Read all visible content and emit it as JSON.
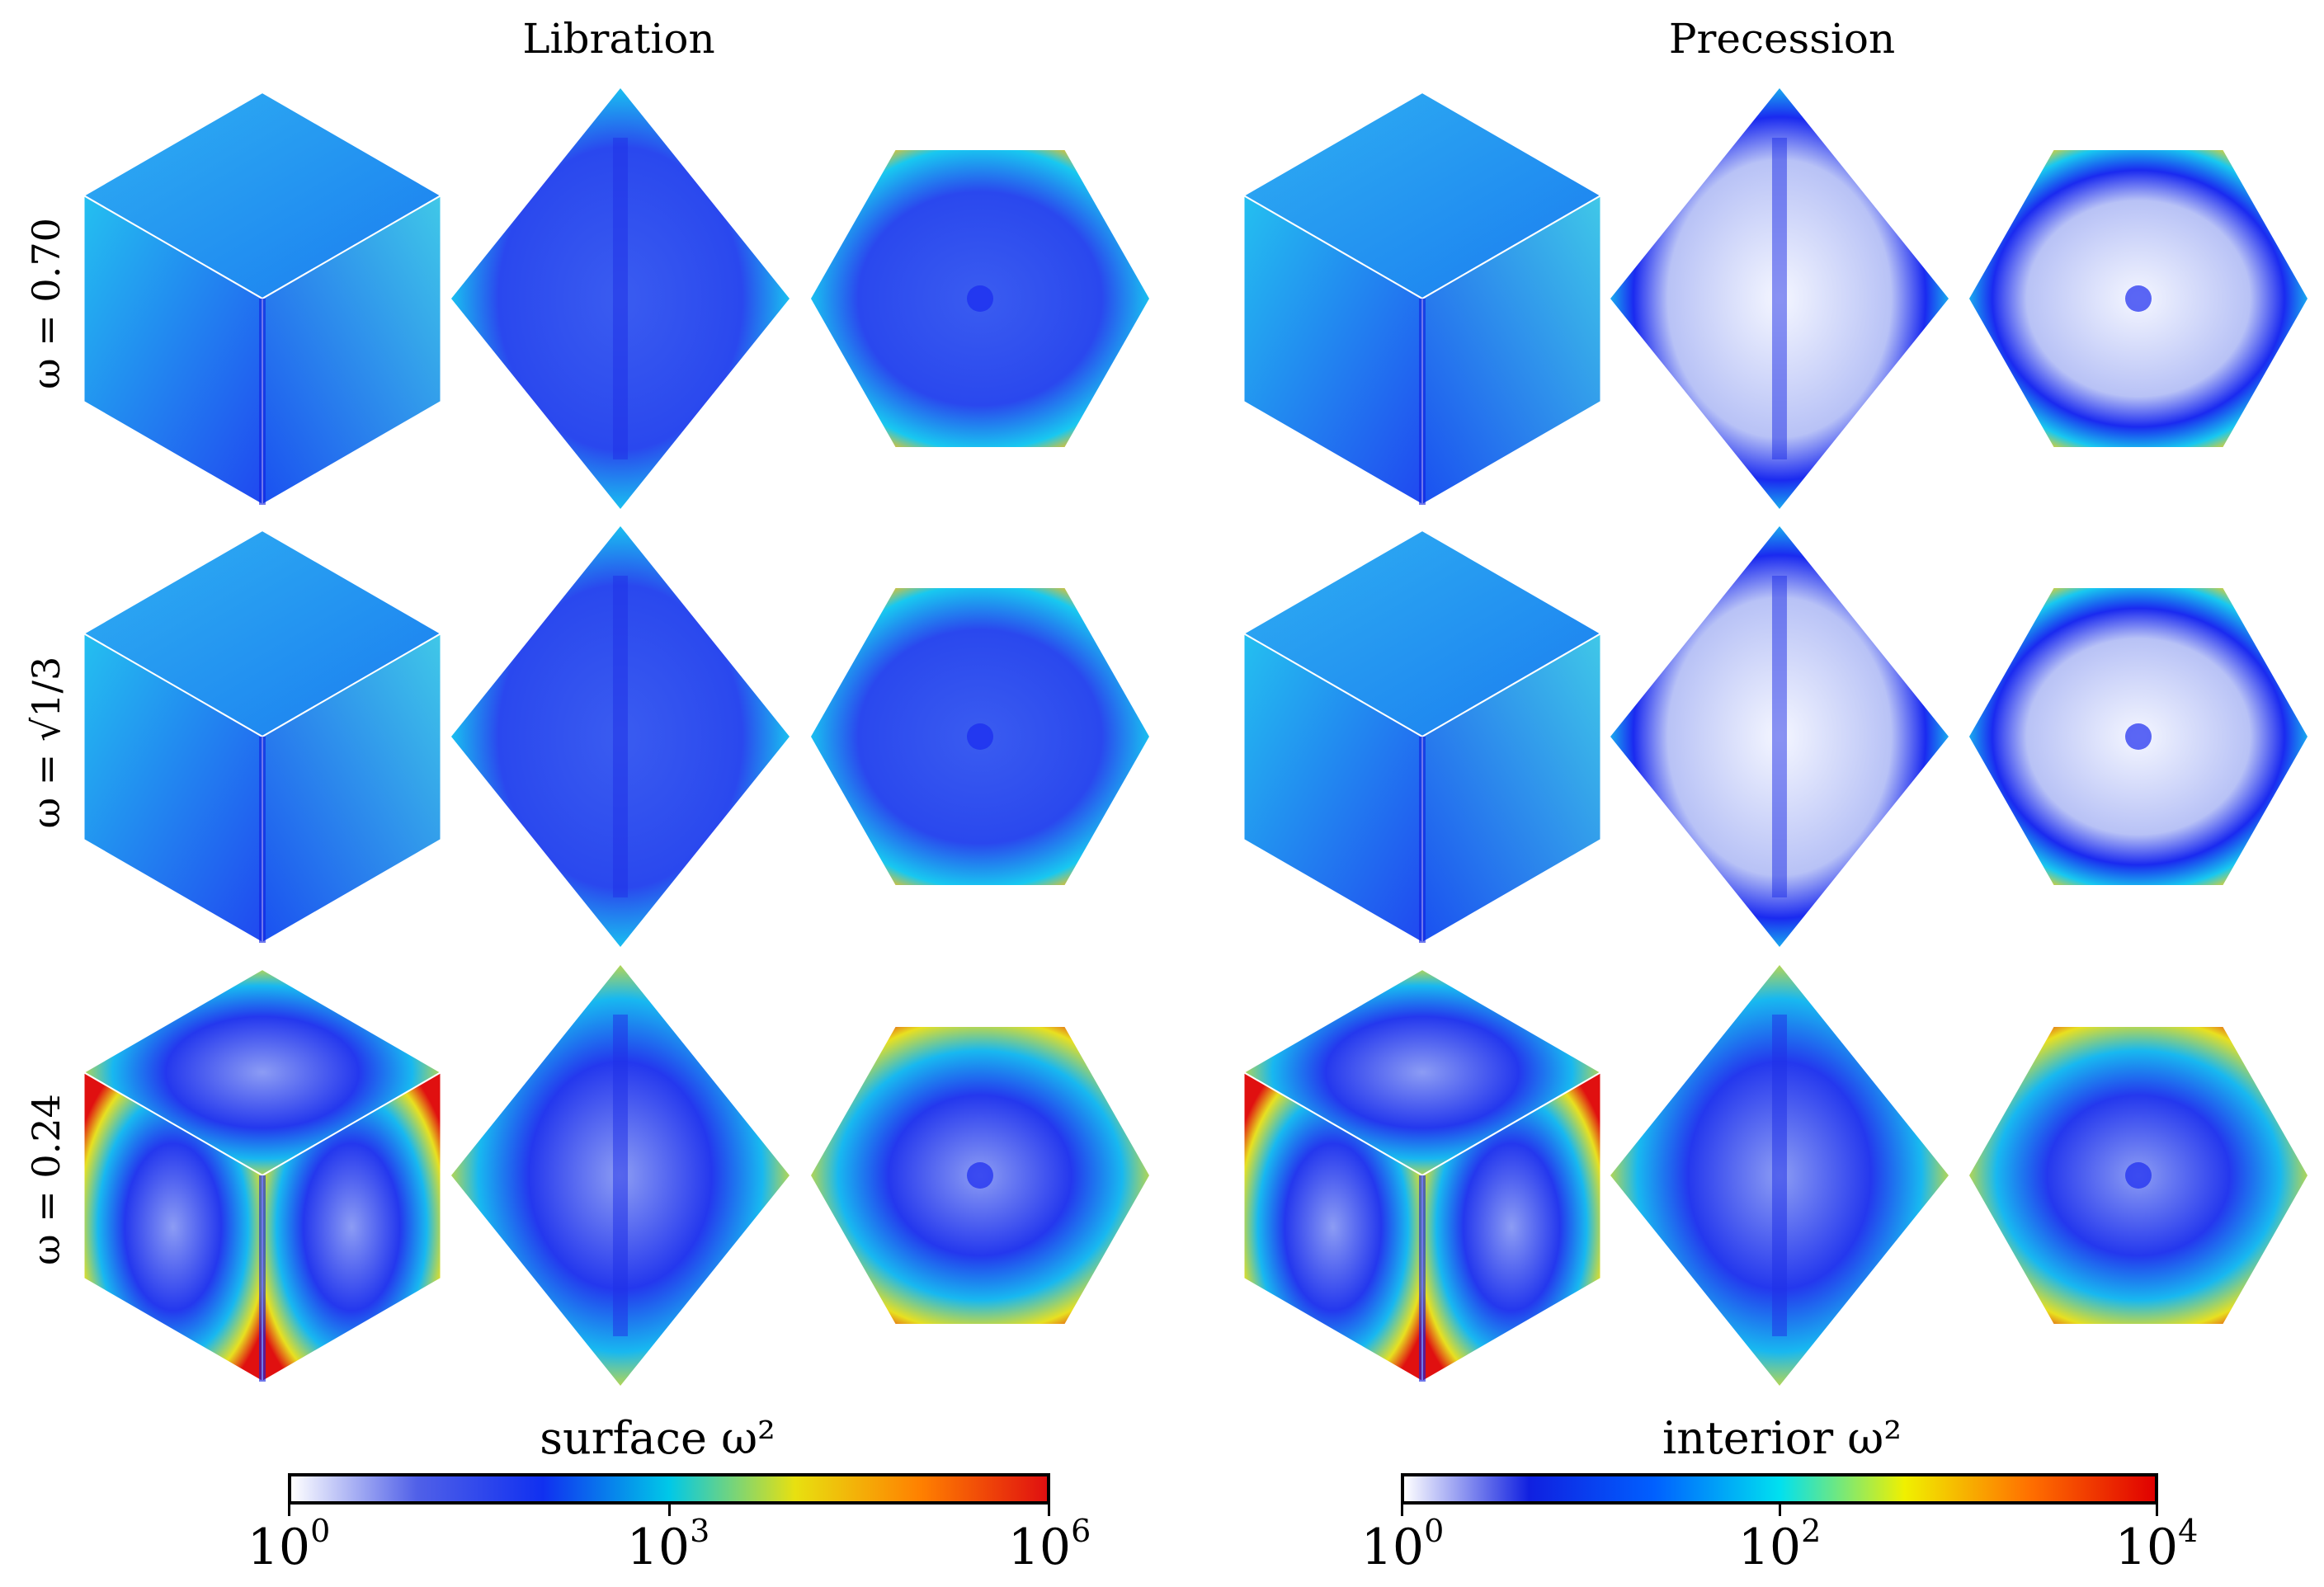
{
  "columns": [
    {
      "title": "Libration"
    },
    {
      "title": "Precession"
    }
  ],
  "rows": [
    {
      "label": "ω = 0.70"
    },
    {
      "label": "ω = √1/3"
    },
    {
      "label": "ω = 0.24"
    }
  ],
  "panel_shapes": [
    "cube",
    "diamond",
    "hexagon"
  ],
  "colorbars": [
    {
      "label": "surface ω²",
      "ticks": [
        {
          "base": "10",
          "exp": "0"
        },
        {
          "base": "10",
          "exp": "3"
        },
        {
          "base": "10",
          "exp": "6"
        }
      ],
      "stops": [
        "#ffffff",
        "#5060e8",
        "#1030f0",
        "#00c8e8",
        "#e8e010",
        "#ff8000",
        "#e01010"
      ]
    },
    {
      "label": "interior ω²",
      "ticks": [
        {
          "base": "10",
          "exp": "0"
        },
        {
          "base": "10",
          "exp": "2"
        },
        {
          "base": "10",
          "exp": "4"
        }
      ],
      "stops": [
        "#ffffff",
        "#1020e0",
        "#0060ff",
        "#00e0f0",
        "#f0f000",
        "#ff7000",
        "#e00000"
      ]
    }
  ],
  "colors": {
    "low": "#ffffff",
    "deep_blue": "#1a2af0",
    "blue": "#3a5cf0",
    "cyan": "#18c8f0",
    "yellow": "#e8e020",
    "orange": "#ff7a10",
    "red": "#e01010"
  }
}
